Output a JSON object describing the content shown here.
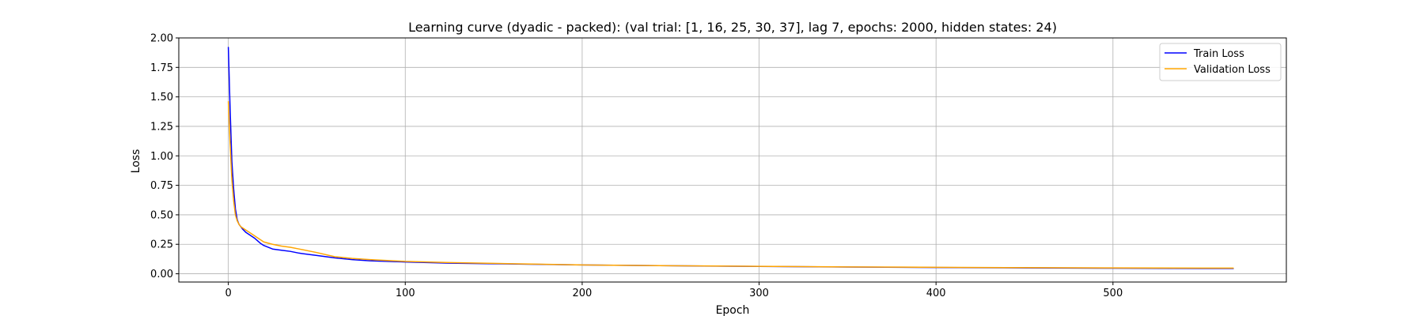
{
  "chart_data": {
    "type": "line",
    "title": "Learning curve (dyadic - packed): (val trial: [1, 16, 25, 30, 37], lag 7, epochs: 2000, hidden states: 24)",
    "xlabel": "Epoch",
    "ylabel": "Loss",
    "xlim": [
      -28,
      598
    ],
    "ylim": [
      -0.07,
      2.0
    ],
    "xticks": [
      0,
      100,
      200,
      300,
      400,
      500
    ],
    "yticks": [
      0.0,
      0.25,
      0.5,
      0.75,
      1.0,
      1.25,
      1.5,
      1.75,
      2.0
    ],
    "ytick_labels": [
      "0.00",
      "0.25",
      "0.50",
      "0.75",
      "1.00",
      "1.25",
      "1.50",
      "1.75",
      "2.00"
    ],
    "grid": true,
    "legend_position": "top-right",
    "series": [
      {
        "name": "Train Loss",
        "color": "#0000ff",
        "x": [
          0,
          1,
          2,
          3,
          4,
          5,
          6,
          7,
          8,
          10,
          12,
          15,
          18,
          20,
          25,
          30,
          35,
          40,
          50,
          60,
          70,
          80,
          100,
          125,
          150,
          200,
          250,
          300,
          350,
          400,
          450,
          500,
          550,
          568
        ],
        "y": [
          1.92,
          1.4,
          0.95,
          0.72,
          0.55,
          0.46,
          0.42,
          0.4,
          0.38,
          0.35,
          0.33,
          0.3,
          0.26,
          0.24,
          0.21,
          0.2,
          0.19,
          0.175,
          0.155,
          0.135,
          0.12,
          0.11,
          0.1,
          0.09,
          0.085,
          0.075,
          0.068,
          0.062,
          0.057,
          0.053,
          0.05,
          0.047,
          0.045,
          0.045
        ]
      },
      {
        "name": "Validation Loss",
        "color": "#ffa500",
        "x": [
          0,
          1,
          2,
          3,
          4,
          5,
          6,
          7,
          8,
          10,
          12,
          15,
          18,
          20,
          25,
          30,
          35,
          40,
          50,
          60,
          70,
          80,
          100,
          125,
          150,
          200,
          250,
          300,
          350,
          400,
          450,
          500,
          550,
          568
        ],
        "y": [
          1.46,
          1.1,
          0.8,
          0.62,
          0.5,
          0.45,
          0.42,
          0.4,
          0.39,
          0.37,
          0.35,
          0.32,
          0.29,
          0.27,
          0.25,
          0.235,
          0.225,
          0.21,
          0.18,
          0.145,
          0.13,
          0.12,
          0.105,
          0.095,
          0.088,
          0.075,
          0.068,
          0.063,
          0.058,
          0.055,
          0.052,
          0.05,
          0.048,
          0.048
        ]
      }
    ]
  }
}
